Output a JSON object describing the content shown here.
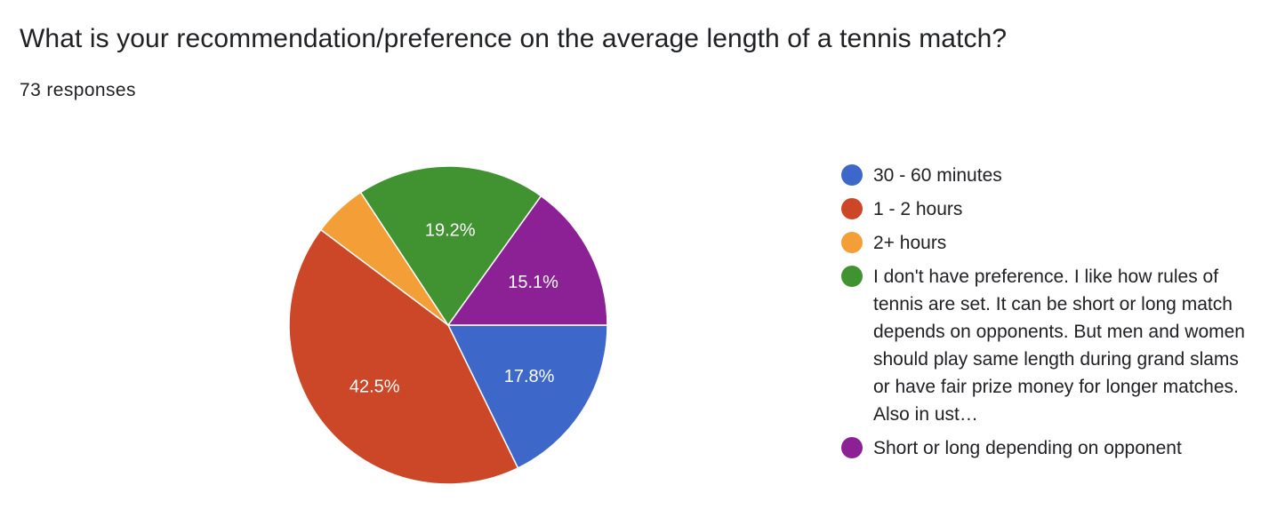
{
  "header": {
    "question": "What is your recommendation/preference on the average length of a tennis match?",
    "responses": "73 responses"
  },
  "chart_data": {
    "type": "pie",
    "total_responses": 73,
    "slices": [
      {
        "label": "30 - 60 minutes",
        "value": 17.8,
        "display": "17.8%",
        "color": "#3d67c8"
      },
      {
        "label": "1 - 2 hours",
        "value": 42.5,
        "display": "42.5%",
        "color": "#cc4727"
      },
      {
        "label": "2+ hours",
        "value": 5.5,
        "display": "",
        "color": "#f39e36"
      },
      {
        "label": "I don't have preference. I like how rules of tennis are set. It can be short or long match depends on opponents. But men and women should play same length during grand slams or have fair prize money for longer matches. Also in ust…",
        "value": 19.2,
        "display": "19.2%",
        "color": "#419231"
      },
      {
        "label": "Short or long depending on opponent",
        "value": 15.1,
        "display": "15.1%",
        "color": "#8c2196"
      }
    ],
    "legend_position": "right",
    "start_angle_deg": 90,
    "direction": "clockwise"
  }
}
